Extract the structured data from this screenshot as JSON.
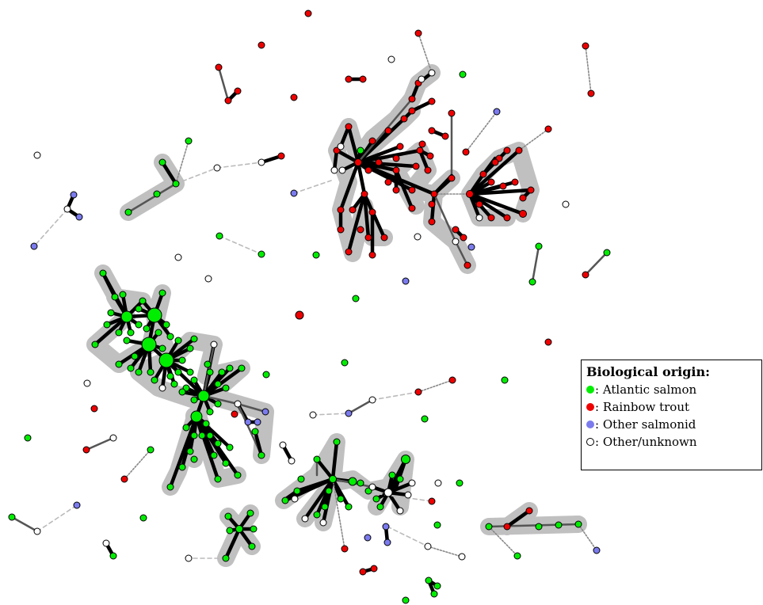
{
  "legend": {
    "title": "Biological origin:",
    "items": [
      {
        "key": "atlantic",
        "label": ": Atlantic salmon",
        "color": "#00ee00"
      },
      {
        "key": "rainbow",
        "label": ": Rainbow trout",
        "color": "#ee0000"
      },
      {
        "key": "other_salmonid",
        "label": ": Other salmonid",
        "color": "#7b7bee"
      },
      {
        "key": "unknown",
        "label": ": Other/unknown",
        "color": "#ffffff"
      }
    ]
  },
  "colors": {
    "halo": "#c0c0c0",
    "thick_edge": "#000000",
    "thin_edge": "#555555",
    "dotted_edge": "#888888",
    "dashed_edge": "#bbbbbb"
  }
}
